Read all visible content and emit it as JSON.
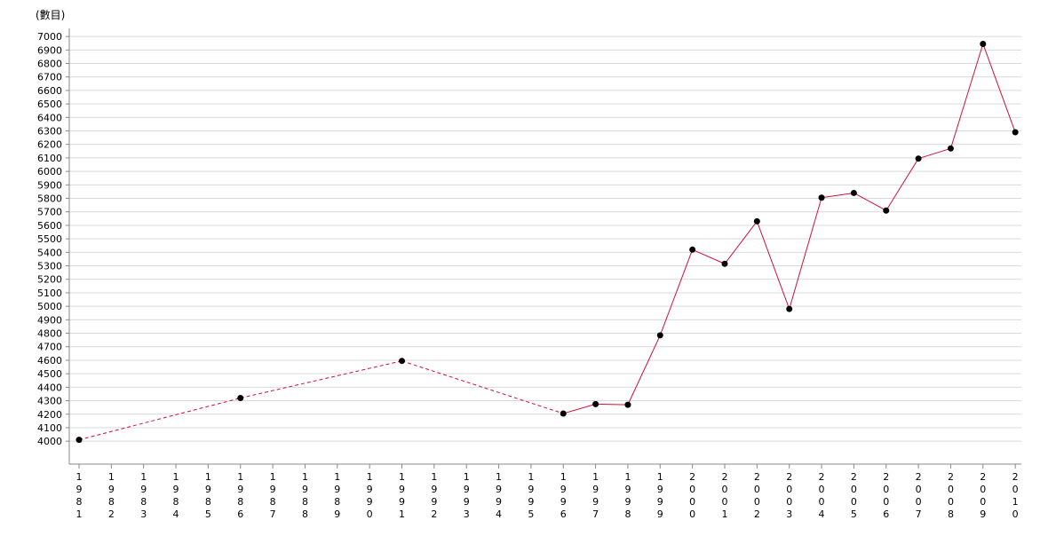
{
  "chart_data": {
    "type": "line",
    "unit_label": "(數目)",
    "title": "",
    "xlabel": "",
    "ylabel": "",
    "grid": true,
    "legend": "none",
    "colors": {
      "line": "#d0103a",
      "marker": "#000000",
      "grid": "#d9d9d9",
      "axis": "#888888"
    },
    "x_categories": [
      "1981",
      "1982",
      "1983",
      "1984",
      "1985",
      "1986",
      "1987",
      "1988",
      "1989",
      "1990",
      "1991",
      "1992",
      "1993",
      "1994",
      "1995",
      "1996",
      "1997",
      "1998",
      "1999",
      "2000",
      "2001",
      "2002",
      "2003",
      "2004",
      "2005",
      "2006",
      "2007",
      "2008",
      "2009",
      "2010"
    ],
    "y_ticks": [
      4000,
      4100,
      4200,
      4300,
      4400,
      4500,
      4600,
      4700,
      4800,
      4900,
      5000,
      5100,
      5200,
      5300,
      5400,
      5500,
      5600,
      5700,
      5800,
      5900,
      6000,
      6100,
      6200,
      6300,
      6400,
      6500,
      6600,
      6700,
      6800,
      6900,
      7000
    ],
    "ylim": [
      3830,
      7060
    ],
    "series": [
      {
        "points": [
          {
            "x": "1981",
            "y": 4010
          },
          {
            "x": "1986",
            "y": 4320
          },
          {
            "x": "1991",
            "y": 4595
          },
          {
            "x": "1996",
            "y": 4205
          },
          {
            "x": "1997",
            "y": 4275
          },
          {
            "x": "1998",
            "y": 4270
          },
          {
            "x": "1999",
            "y": 4785
          },
          {
            "x": "2000",
            "y": 5420
          },
          {
            "x": "2001",
            "y": 5315
          },
          {
            "x": "2002",
            "y": 5630
          },
          {
            "x": "2003",
            "y": 4980
          },
          {
            "x": "2004",
            "y": 5805
          },
          {
            "x": "2005",
            "y": 5840
          },
          {
            "x": "2006",
            "y": 5710
          },
          {
            "x": "2007",
            "y": 6095
          },
          {
            "x": "2008",
            "y": 6170
          },
          {
            "x": "2009",
            "y": 6945
          },
          {
            "x": "2010",
            "y": 6290
          }
        ],
        "dashed_segments_until": "1996"
      }
    ]
  }
}
